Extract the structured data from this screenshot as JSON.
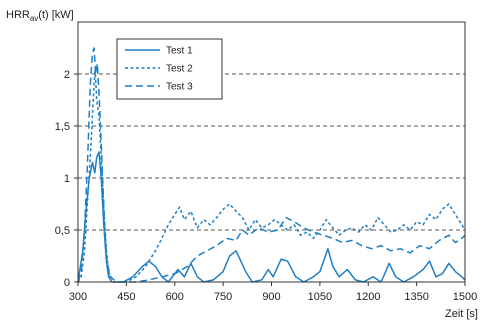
{
  "chart_data": {
    "type": "line",
    "title": "",
    "ylabel_main": "HRR",
    "ylabel_sub": "av",
    "ylabel_rest": "(t) [kW]",
    "xlabel": "Zeit [s]",
    "xlim": [
      300,
      1500
    ],
    "ylim": [
      0,
      2.5
    ],
    "x_ticks": [
      300,
      450,
      600,
      750,
      900,
      1050,
      1200,
      1350,
      1500
    ],
    "x_tick_labels": [
      "300",
      "450",
      "600",
      "750",
      "900",
      "1050",
      "1200",
      "1350",
      "1500"
    ],
    "y_ticks": [
      0,
      0.5,
      1,
      1.5,
      2
    ],
    "y_tick_labels": [
      "0",
      "0,5",
      "1",
      "1,5",
      "2"
    ],
    "grid": "horizontal dashed",
    "legend_position": "top-left",
    "line_color": "#1f7fc4",
    "series": [
      {
        "name": "Test 1",
        "dash": "solid",
        "points": [
          [
            300,
            0
          ],
          [
            315,
            0.3
          ],
          [
            325,
            0.7
          ],
          [
            335,
            1.0
          ],
          [
            345,
            1.15
          ],
          [
            352,
            1.05
          ],
          [
            358,
            1.2
          ],
          [
            365,
            1.25
          ],
          [
            372,
            1.0
          ],
          [
            380,
            0.55
          ],
          [
            388,
            0.2
          ],
          [
            395,
            0.05
          ],
          [
            405,
            0
          ],
          [
            440,
            0
          ],
          [
            470,
            0.05
          ],
          [
            500,
            0.15
          ],
          [
            520,
            0.2
          ],
          [
            540,
            0.15
          ],
          [
            560,
            0.05
          ],
          [
            580,
            0
          ],
          [
            610,
            0.12
          ],
          [
            630,
            0.05
          ],
          [
            650,
            0.18
          ],
          [
            670,
            0.05
          ],
          [
            690,
            0
          ],
          [
            720,
            0.02
          ],
          [
            750,
            0.1
          ],
          [
            770,
            0.25
          ],
          [
            790,
            0.3
          ],
          [
            805,
            0.2
          ],
          [
            820,
            0.1
          ],
          [
            840,
            0
          ],
          [
            870,
            0.02
          ],
          [
            890,
            0.12
          ],
          [
            905,
            0.05
          ],
          [
            930,
            0.22
          ],
          [
            950,
            0.2
          ],
          [
            975,
            0.05
          ],
          [
            1000,
            0
          ],
          [
            1030,
            0.05
          ],
          [
            1050,
            0.1
          ],
          [
            1075,
            0.32
          ],
          [
            1090,
            0.15
          ],
          [
            1110,
            0.05
          ],
          [
            1135,
            0.12
          ],
          [
            1160,
            0.02
          ],
          [
            1185,
            0
          ],
          [
            1215,
            0.05
          ],
          [
            1240,
            0
          ],
          [
            1265,
            0.18
          ],
          [
            1285,
            0.05
          ],
          [
            1310,
            0
          ],
          [
            1340,
            0.05
          ],
          [
            1370,
            0.12
          ],
          [
            1390,
            0.2
          ],
          [
            1410,
            0.05
          ],
          [
            1430,
            0.08
          ],
          [
            1450,
            0.18
          ],
          [
            1470,
            0.1
          ],
          [
            1490,
            0.05
          ],
          [
            1500,
            0.02
          ]
        ]
      },
      {
        "name": "Test 2",
        "dash": "short",
        "points": [
          [
            300,
            0
          ],
          [
            310,
            0.05
          ],
          [
            320,
            0.3
          ],
          [
            330,
            0.8
          ],
          [
            340,
            1.3
          ],
          [
            348,
            1.8
          ],
          [
            353,
            2.05
          ],
          [
            358,
            1.75
          ],
          [
            365,
            1.6
          ],
          [
            372,
            1.2
          ],
          [
            380,
            0.7
          ],
          [
            388,
            0.3
          ],
          [
            395,
            0.1
          ],
          [
            410,
            0
          ],
          [
            450,
            0
          ],
          [
            480,
            0.05
          ],
          [
            510,
            0.15
          ],
          [
            540,
            0.3
          ],
          [
            560,
            0.42
          ],
          [
            580,
            0.55
          ],
          [
            600,
            0.65
          ],
          [
            615,
            0.72
          ],
          [
            630,
            0.6
          ],
          [
            650,
            0.68
          ],
          [
            670,
            0.52
          ],
          [
            690,
            0.6
          ],
          [
            710,
            0.55
          ],
          [
            730,
            0.62
          ],
          [
            750,
            0.7
          ],
          [
            770,
            0.75
          ],
          [
            790,
            0.68
          ],
          [
            810,
            0.62
          ],
          [
            830,
            0.5
          ],
          [
            850,
            0.6
          ],
          [
            870,
            0.52
          ],
          [
            890,
            0.55
          ],
          [
            910,
            0.6
          ],
          [
            930,
            0.55
          ],
          [
            950,
            0.5
          ],
          [
            970,
            0.55
          ],
          [
            990,
            0.45
          ],
          [
            1010,
            0.48
          ],
          [
            1030,
            0.42
          ],
          [
            1050,
            0.5
          ],
          [
            1070,
            0.6
          ],
          [
            1090,
            0.52
          ],
          [
            1110,
            0.45
          ],
          [
            1130,
            0.5
          ],
          [
            1150,
            0.52
          ],
          [
            1170,
            0.48
          ],
          [
            1190,
            0.55
          ],
          [
            1210,
            0.5
          ],
          [
            1230,
            0.62
          ],
          [
            1250,
            0.55
          ],
          [
            1270,
            0.48
          ],
          [
            1290,
            0.5
          ],
          [
            1310,
            0.55
          ],
          [
            1330,
            0.5
          ],
          [
            1350,
            0.58
          ],
          [
            1370,
            0.55
          ],
          [
            1390,
            0.65
          ],
          [
            1410,
            0.6
          ],
          [
            1430,
            0.7
          ],
          [
            1450,
            0.75
          ],
          [
            1470,
            0.65
          ],
          [
            1490,
            0.55
          ],
          [
            1500,
            0.5
          ]
        ]
      },
      {
        "name": "Test 3",
        "dash": "long",
        "points": [
          [
            300,
            0
          ],
          [
            310,
            0.1
          ],
          [
            320,
            0.5
          ],
          [
            330,
            1.2
          ],
          [
            338,
            1.9
          ],
          [
            345,
            2.2
          ],
          [
            350,
            2.25
          ],
          [
            355,
            2.0
          ],
          [
            360,
            2.1
          ],
          [
            367,
            1.7
          ],
          [
            375,
            1.1
          ],
          [
            383,
            0.5
          ],
          [
            390,
            0.2
          ],
          [
            400,
            0.05
          ],
          [
            420,
            0
          ],
          [
            480,
            0
          ],
          [
            520,
            0.02
          ],
          [
            560,
            0.05
          ],
          [
            600,
            0.08
          ],
          [
            640,
            0.15
          ],
          [
            670,
            0.25
          ],
          [
            700,
            0.3
          ],
          [
            730,
            0.35
          ],
          [
            760,
            0.42
          ],
          [
            790,
            0.4
          ],
          [
            810,
            0.5
          ],
          [
            830,
            0.45
          ],
          [
            860,
            0.52
          ],
          [
            890,
            0.48
          ],
          [
            920,
            0.5
          ],
          [
            945,
            0.62
          ],
          [
            970,
            0.58
          ],
          [
            1000,
            0.52
          ],
          [
            1030,
            0.48
          ],
          [
            1060,
            0.45
          ],
          [
            1090,
            0.42
          ],
          [
            1120,
            0.38
          ],
          [
            1150,
            0.4
          ],
          [
            1180,
            0.35
          ],
          [
            1210,
            0.32
          ],
          [
            1240,
            0.35
          ],
          [
            1270,
            0.3
          ],
          [
            1300,
            0.32
          ],
          [
            1330,
            0.28
          ],
          [
            1360,
            0.35
          ],
          [
            1390,
            0.32
          ],
          [
            1420,
            0.4
          ],
          [
            1450,
            0.45
          ],
          [
            1470,
            0.38
          ],
          [
            1490,
            0.42
          ],
          [
            1500,
            0.45
          ]
        ]
      }
    ]
  }
}
